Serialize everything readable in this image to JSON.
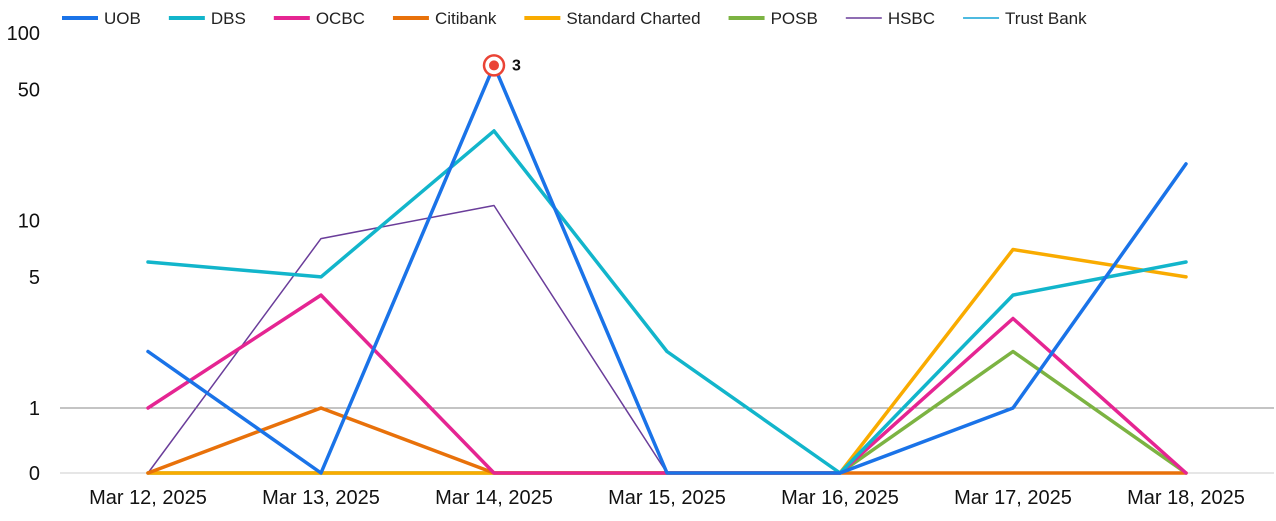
{
  "chart_data": {
    "type": "line",
    "title": "",
    "xlabel": "",
    "ylabel": "",
    "yscale": "symlog",
    "ylim": [
      0,
      100
    ],
    "grid": false,
    "legend_position": "top",
    "x": [
      "Mar 12, 2025",
      "Mar 13, 2025",
      "Mar 14, 2025",
      "Mar 15, 2025",
      "Mar 16, 2025",
      "Mar 17, 2025",
      "Mar 18, 2025"
    ],
    "y_ticks": [
      {
        "value": 0,
        "label": "0"
      },
      {
        "value": 1,
        "label": "1"
      },
      {
        "value": 5,
        "label": "5"
      },
      {
        "value": 10,
        "label": "10"
      },
      {
        "value": 50,
        "label": "50"
      },
      {
        "value": 100,
        "label": "100"
      }
    ],
    "reference_line": {
      "value": 1,
      "color": "#888888"
    },
    "series": [
      {
        "name": "UOB",
        "color": "#1a73e8",
        "bold": true,
        "values": [
          2,
          0,
          67,
          0,
          0,
          1,
          20
        ]
      },
      {
        "name": "DBS",
        "color": "#12b5cb",
        "bold": true,
        "values": [
          6,
          5,
          30,
          2,
          0,
          4,
          6
        ]
      },
      {
        "name": "OCBC",
        "color": "#e52592",
        "bold": true,
        "values": [
          1,
          4,
          0,
          0,
          0,
          3,
          0
        ]
      },
      {
        "name": "Citibank",
        "color": "#e8710a",
        "bold": true,
        "values": [
          0,
          1,
          0,
          0,
          0,
          0,
          0
        ]
      },
      {
        "name": "Standard Charted",
        "color": "#f9ab00",
        "bold": true,
        "values": [
          0,
          0,
          0,
          0,
          0,
          7,
          5
        ]
      },
      {
        "name": "POSB",
        "color": "#7cb342",
        "bold": true,
        "values": [
          0,
          0,
          0,
          0,
          0,
          2,
          0
        ]
      },
      {
        "name": "HSBC",
        "color": "#6a3d9a",
        "bold": false,
        "values": [
          0,
          8,
          12,
          0,
          0,
          0,
          0
        ]
      },
      {
        "name": "Trust Bank",
        "color": "#12a4d6",
        "bold": false,
        "values": [
          0,
          0,
          0,
          0,
          0,
          0,
          0
        ]
      }
    ],
    "annotations": [
      {
        "series": "UOB",
        "x": "Mar 14, 2025",
        "label": "3",
        "marker_color": "#ea4335"
      }
    ]
  }
}
